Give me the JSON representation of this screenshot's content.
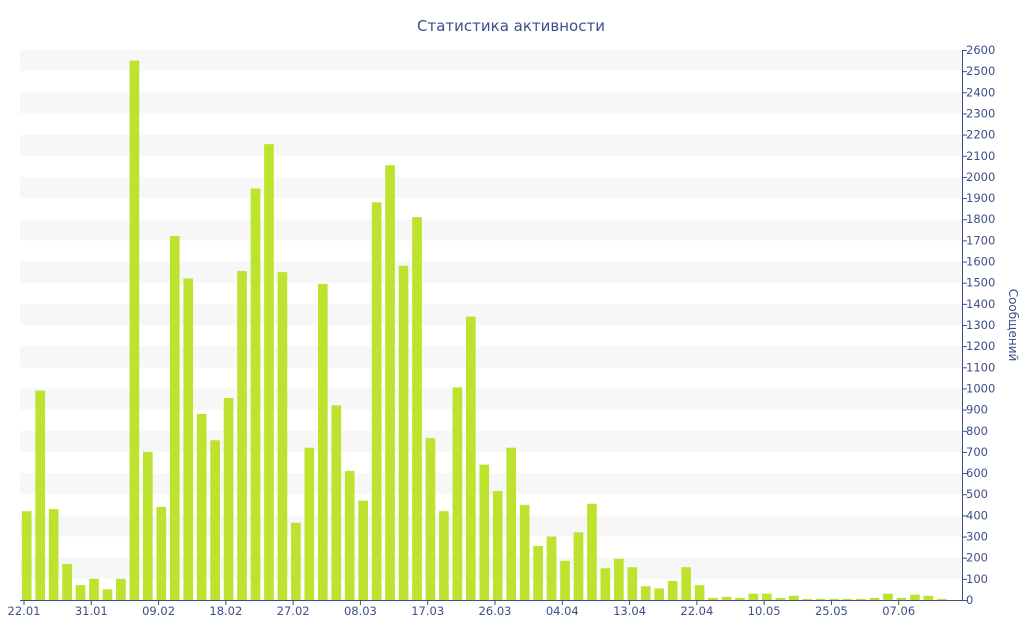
{
  "chart_data": {
    "type": "bar",
    "title": "Статистика активности",
    "ylabel": "Сообщений",
    "xlabel": "",
    "ylim": [
      0,
      2600
    ],
    "y_tick_step": 100,
    "y_axis_side": "right",
    "grid": "alternating horizontal bands",
    "bar_color": "#bde32e",
    "band_color": "#f7f7f7",
    "text_color": "#3f4d8a",
    "x_tick_labels": [
      {
        "label": "22.01",
        "index": 0
      },
      {
        "label": "31.01",
        "index": 5
      },
      {
        "label": "09.02",
        "index": 10
      },
      {
        "label": "18.02",
        "index": 15
      },
      {
        "label": "27.02",
        "index": 20
      },
      {
        "label": "08.03",
        "index": 25
      },
      {
        "label": "17.03",
        "index": 30
      },
      {
        "label": "26.03",
        "index": 35
      },
      {
        "label": "04.04",
        "index": 40
      },
      {
        "label": "13.04",
        "index": 45
      },
      {
        "label": "22.04",
        "index": 50
      },
      {
        "label": "10.05",
        "index": 55
      },
      {
        "label": "25.05",
        "index": 60
      },
      {
        "label": "07.06",
        "index": 65
      }
    ],
    "values": [
      420,
      990,
      430,
      170,
      70,
      100,
      50,
      100,
      2550,
      700,
      440,
      1720,
      1520,
      880,
      755,
      955,
      1555,
      1945,
      2155,
      1550,
      365,
      720,
      1495,
      920,
      610,
      470,
      1880,
      2055,
      1580,
      1810,
      765,
      420,
      1005,
      1340,
      640,
      515,
      720,
      450,
      255,
      300,
      185,
      320,
      455,
      150,
      195,
      155,
      65,
      55,
      90,
      155,
      70,
      10,
      15,
      10,
      30,
      30,
      10,
      20,
      5,
      5,
      5,
      5,
      5,
      10,
      30,
      10,
      25,
      20,
      5,
      0
    ]
  }
}
